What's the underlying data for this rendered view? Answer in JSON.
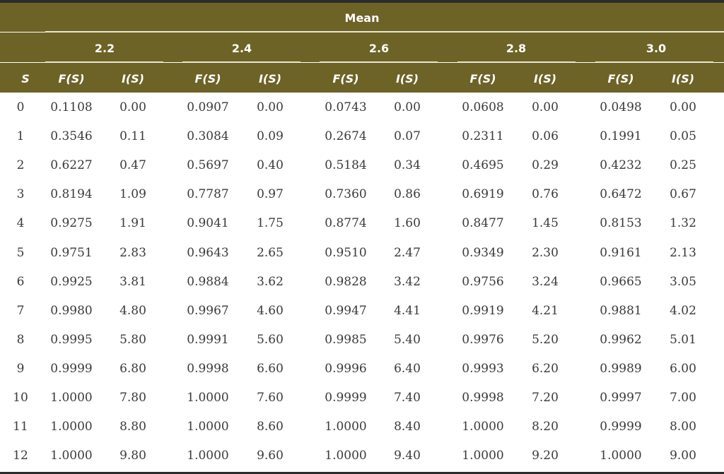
{
  "table": {
    "title": "Mean",
    "s_label": "S",
    "f_label": "F(S)",
    "i_label": "I(S)",
    "means": [
      "2.2",
      "2.4",
      "2.6",
      "2.8",
      "3.0"
    ],
    "rows": [
      [
        "0",
        "0.1108",
        "0.00",
        "0.0907",
        "0.00",
        "0.0743",
        "0.00",
        "0.0608",
        "0.00",
        "0.0498",
        "0.00"
      ],
      [
        "1",
        "0.3546",
        "0.11",
        "0.3084",
        "0.09",
        "0.2674",
        "0.07",
        "0.2311",
        "0.06",
        "0.1991",
        "0.05"
      ],
      [
        "2",
        "0.6227",
        "0.47",
        "0.5697",
        "0.40",
        "0.5184",
        "0.34",
        "0.4695",
        "0.29",
        "0.4232",
        "0.25"
      ],
      [
        "3",
        "0.8194",
        "1.09",
        "0.7787",
        "0.97",
        "0.7360",
        "0.86",
        "0.6919",
        "0.76",
        "0.6472",
        "0.67"
      ],
      [
        "4",
        "0.9275",
        "1.91",
        "0.9041",
        "1.75",
        "0.8774",
        "1.60",
        "0.8477",
        "1.45",
        "0.8153",
        "1.32"
      ],
      [
        "5",
        "0.9751",
        "2.83",
        "0.9643",
        "2.65",
        "0.9510",
        "2.47",
        "0.9349",
        "2.30",
        "0.9161",
        "2.13"
      ],
      [
        "6",
        "0.9925",
        "3.81",
        "0.9884",
        "3.62",
        "0.9828",
        "3.42",
        "0.9756",
        "3.24",
        "0.9665",
        "3.05"
      ],
      [
        "7",
        "0.9980",
        "4.80",
        "0.9967",
        "4.60",
        "0.9947",
        "4.41",
        "0.9919",
        "4.21",
        "0.9881",
        "4.02"
      ],
      [
        "8",
        "0.9995",
        "5.80",
        "0.9991",
        "5.60",
        "0.9985",
        "5.40",
        "0.9976",
        "5.20",
        "0.9962",
        "5.01"
      ],
      [
        "9",
        "0.9999",
        "6.80",
        "0.9998",
        "6.60",
        "0.9996",
        "6.40",
        "0.9993",
        "6.20",
        "0.9989",
        "6.00"
      ],
      [
        "10",
        "1.0000",
        "7.80",
        "1.0000",
        "7.60",
        "0.9999",
        "7.40",
        "0.9998",
        "7.20",
        "0.9997",
        "7.00"
      ],
      [
        "11",
        "1.0000",
        "8.80",
        "1.0000",
        "8.60",
        "1.0000",
        "8.40",
        "1.0000",
        "8.20",
        "0.9999",
        "8.00"
      ],
      [
        "12",
        "1.0000",
        "9.80",
        "1.0000",
        "9.60",
        "1.0000",
        "9.40",
        "1.0000",
        "9.20",
        "1.0000",
        "9.00"
      ]
    ]
  },
  "colors": {
    "header_bg": "#6d6327",
    "header_text": "#ffffff",
    "body_text": "#3a3a3a"
  }
}
